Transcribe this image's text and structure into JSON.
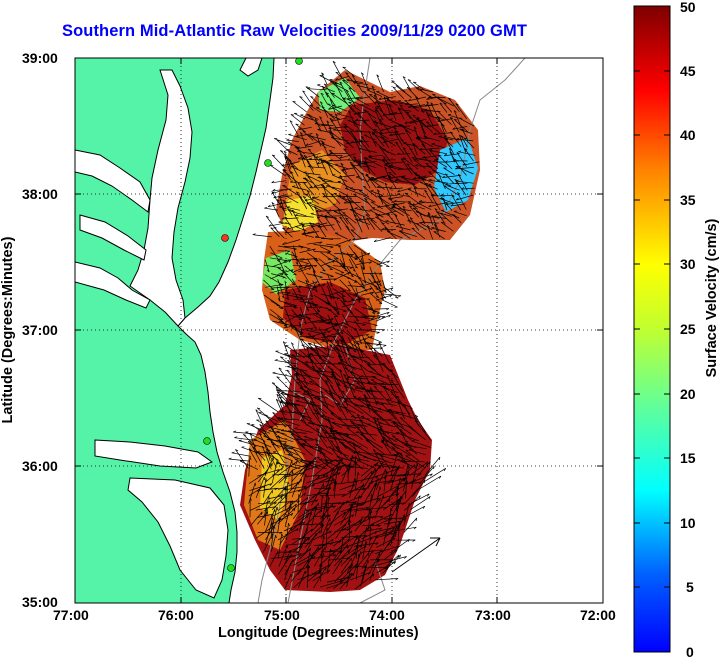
{
  "title": "Southern Mid-Atlantic Raw Velocities 2009/11/29 0200 GMT",
  "x_axis": {
    "label": "Longitude (Degrees:Minutes)",
    "ticks": [
      "77:00",
      "76:00",
      "75:00",
      "74:00",
      "73:00",
      "72:00"
    ]
  },
  "y_axis": {
    "label": "Latitude (Degrees:Minutes)",
    "ticks": [
      "39:00",
      "38:00",
      "37:00",
      "36:00",
      "35:00"
    ]
  },
  "colorbar": {
    "label": "Surface Velocity (cm/s)",
    "ticks": [
      "50",
      "45",
      "40",
      "35",
      "30",
      "25",
      "20",
      "15",
      "10",
      "5",
      "0"
    ]
  },
  "colors": {
    "land": "#55f3a8",
    "title": "#0000ff",
    "station": "#22dd22",
    "station_alert": "#ff3322"
  },
  "chart_data": {
    "type": "map",
    "xlim": [
      -77,
      -72
    ],
    "ylim": [
      35,
      39
    ],
    "grid": true,
    "color_range": [
      0,
      50
    ],
    "colormap": "jet"
  }
}
